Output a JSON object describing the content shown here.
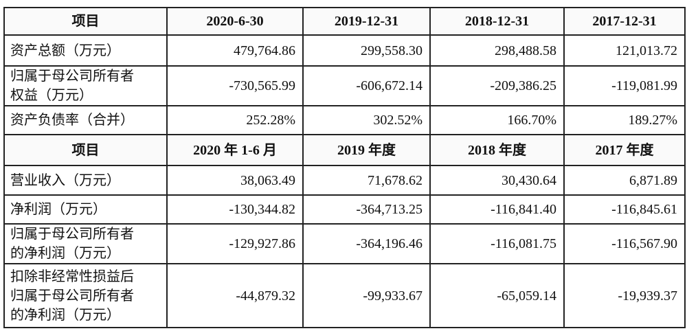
{
  "sections": [
    {
      "header": [
        "项目",
        "2020-6-30",
        "2019-12-31",
        "2018-12-31",
        "2017-12-31"
      ],
      "rows": [
        {
          "label": [
            "资产总额（万元）"
          ],
          "values": [
            "479,764.86",
            "299,558.30",
            "298,488.58",
            "121,013.72"
          ]
        },
        {
          "label": [
            "归属于母公司所有者",
            "权益（万元）"
          ],
          "values": [
            "-730,565.99",
            "-606,672.14",
            "-209,386.25",
            "-119,081.99"
          ]
        },
        {
          "label": [
            "资产负债率（合并）"
          ],
          "values": [
            "252.28%",
            "302.52%",
            "166.70%",
            "189.27%"
          ]
        }
      ]
    },
    {
      "header": [
        "项目",
        "2020 年 1-6 月",
        "2019 年度",
        "2018 年度",
        "2017 年度"
      ],
      "rows": [
        {
          "label": [
            "营业收入（万元）"
          ],
          "values": [
            "38,063.49",
            "71,678.62",
            "30,430.64",
            "6,871.89"
          ]
        },
        {
          "label": [
            "净利润（万元）"
          ],
          "values": [
            "-130,344.82",
            "-364,713.25",
            "-116,841.40",
            "-116,845.61"
          ]
        },
        {
          "label": [
            "归属于母公司所有者",
            "的净利润（万元）"
          ],
          "values": [
            "-129,927.86",
            "-364,196.46",
            "-116,081.75",
            "-116,567.90"
          ]
        },
        {
          "label": [
            "扣除非经常性损益后",
            "归属于母公司所有者",
            "的净利润（万元）"
          ],
          "values": [
            "-44,879.32",
            "-99,933.67",
            "-65,059.14",
            "-19,939.37"
          ]
        }
      ]
    }
  ]
}
